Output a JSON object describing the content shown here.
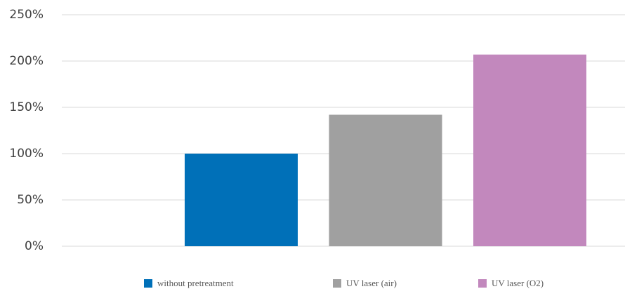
{
  "chart_data": {
    "type": "bar",
    "categories": [
      null
    ],
    "series": [
      {
        "name": "without pretreatment",
        "color": "#0070b8",
        "values": [
          100
        ]
      },
      {
        "name": "UV laser (air)",
        "color": "#a0a0a0",
        "values": [
          142
        ]
      },
      {
        "name": "UV laser (O2)",
        "color": "#c288bd",
        "values": [
          207
        ]
      }
    ],
    "ylim": [
      0,
      250
    ],
    "yticks": [
      {
        "value": 0,
        "label": "0%"
      },
      {
        "value": 50,
        "label": "50%"
      },
      {
        "value": 100,
        "label": "100%"
      },
      {
        "value": 150,
        "label": "150%"
      },
      {
        "value": 200,
        "label": "200%"
      },
      {
        "value": 250,
        "label": "250%"
      }
    ],
    "grid": true,
    "legend": "bottom"
  }
}
